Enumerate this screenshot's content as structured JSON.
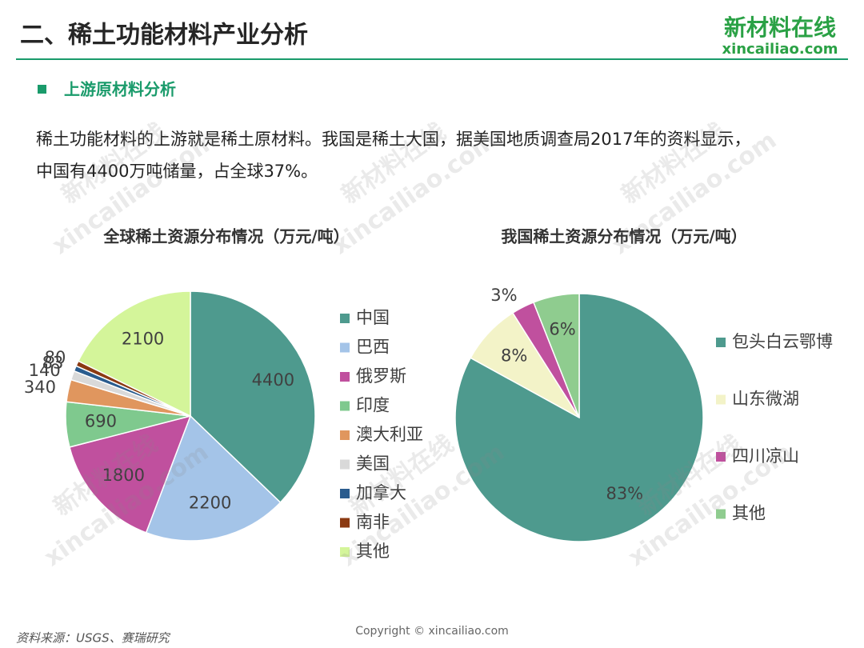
{
  "header": {
    "title": "二、稀土功能材料产业分析",
    "logo_cn": "新材料在线",
    "logo_en": "xincailiao.com",
    "section": "上游原材料分析",
    "paragraph": [
      "稀土功能材料的上游就是稀土原材料。我国是稀土大国，据美国地质调查局2017年的资料显示，",
      "中国有4400万吨储量，占全球37%。"
    ]
  },
  "chart_data": [
    {
      "type": "pie",
      "title": "全球稀土资源分布情况（万元/吨）",
      "categories": [
        "中国",
        "巴西",
        "俄罗斯",
        "印度",
        "澳大利亚",
        "美国",
        "加拿大",
        "南非",
        "其他"
      ],
      "values": [
        4400,
        2200,
        1800,
        690,
        340,
        140,
        83,
        80,
        2100
      ],
      "colors": [
        "#4e9a8e",
        "#a4c4e8",
        "#c0509e",
        "#7fc98e",
        "#e0965e",
        "#d9d9d9",
        "#2a5c8e",
        "#8b3a12",
        "#d4f59a"
      ]
    },
    {
      "type": "pie",
      "title": "我国稀土资源分布情况（万元/吨）",
      "categories": [
        "包头白云鄂博",
        "山东微湖",
        "四川凉山",
        "其他"
      ],
      "values": [
        83,
        8,
        3,
        6
      ],
      "value_labels": [
        "83%",
        "8%",
        "3%",
        "6%"
      ],
      "colors": [
        "#4e9a8e",
        "#f3f3c8",
        "#c0509e",
        "#8fcc8f"
      ]
    }
  ],
  "footer": {
    "source": "资料来源：USGS、赛瑞研究",
    "copyright": "Copyright © xincailiao.com"
  }
}
